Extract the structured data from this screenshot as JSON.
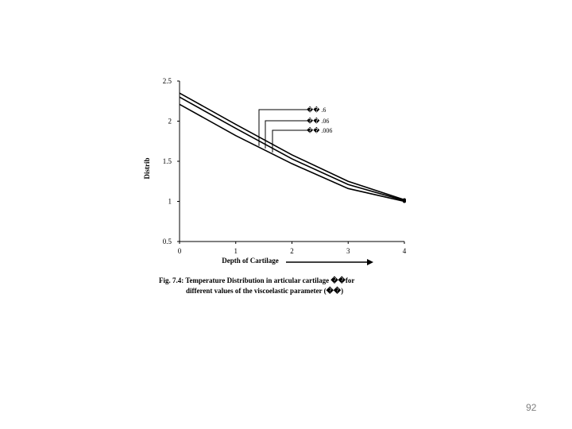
{
  "chart_data": {
    "type": "line",
    "title": "",
    "xlabel": "Depth of Cartilage",
    "ylabel": "Distrib",
    "xlim": [
      0,
      4
    ],
    "ylim": [
      0.5,
      2.5
    ],
    "x_ticks": [
      "0",
      "1",
      "2",
      "3",
      "4"
    ],
    "y_ticks": [
      "2.5",
      "2",
      "1.5",
      "1",
      "0.5"
    ],
    "grid": false,
    "legend_position": "top-right",
    "series": [
      {
        "name": "�� .6",
        "x": [
          0,
          1,
          2,
          3,
          4
        ],
        "y": [
          2.35,
          1.96,
          1.58,
          1.25,
          1.02
        ]
      },
      {
        "name": "�� .06",
        "x": [
          0,
          1,
          2,
          3,
          4
        ],
        "y": [
          2.3,
          1.91,
          1.53,
          1.21,
          1.01
        ]
      },
      {
        "name": "�� .006",
        "x": [
          0,
          1,
          2,
          3,
          4
        ],
        "y": [
          2.21,
          1.82,
          1.47,
          1.16,
          1.0
        ]
      }
    ],
    "arrow": "right"
  },
  "caption": {
    "line1": "Fig. 7.4: Temperature Distribution in articular cartilage ��for",
    "line2": "different values of the viscoelastic parameter (��)"
  },
  "page_number": "92"
}
